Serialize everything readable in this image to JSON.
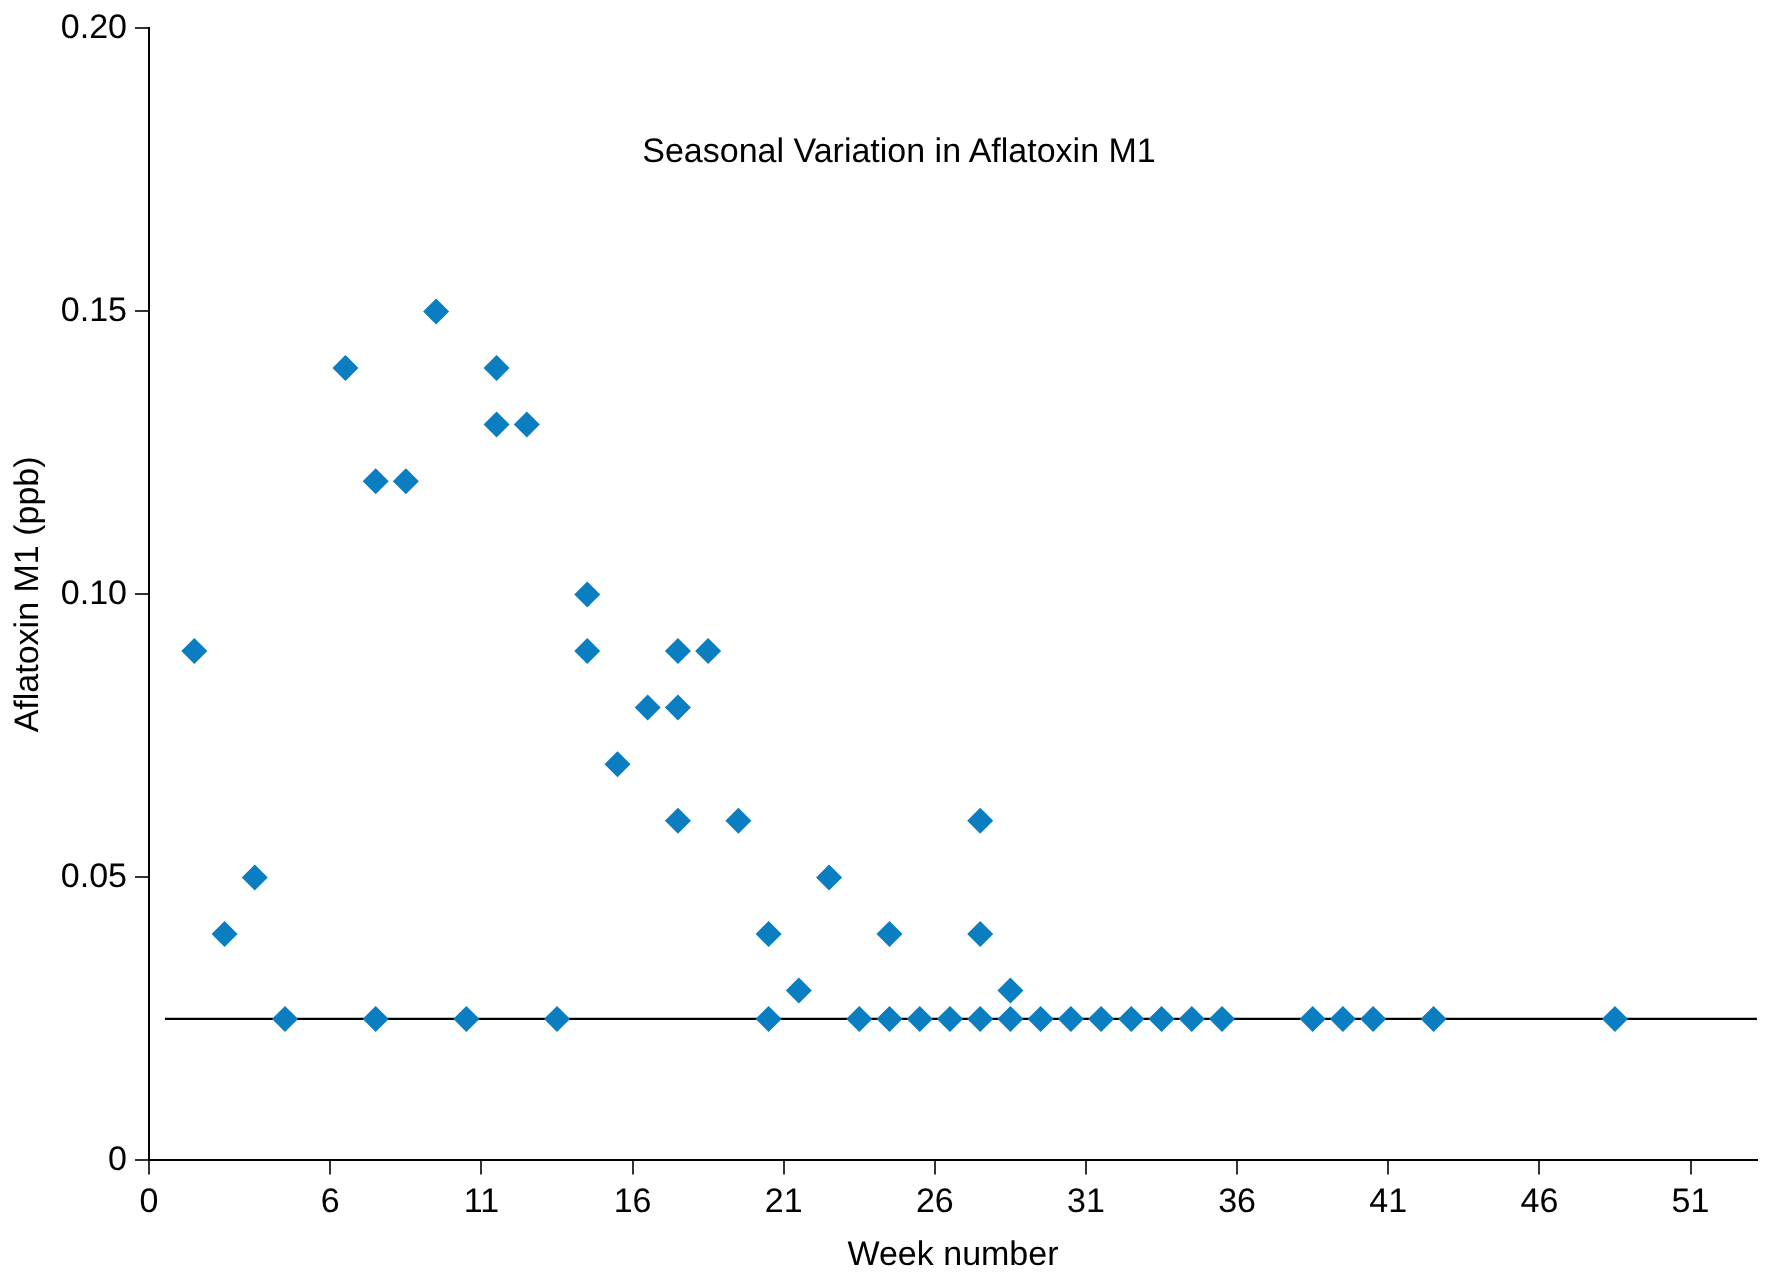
{
  "chart_data": {
    "type": "scatter",
    "title": "Seasonal Variation in Aflatoxin M1",
    "xlabel": "Week number",
    "ylabel": "Aflatoxin M1 (ppb)",
    "xlim": [
      0,
      53.2
    ],
    "xticks": [
      0,
      6,
      11,
      16,
      21,
      26,
      31,
      36,
      41,
      46,
      51
    ],
    "ylim": [
      0,
      0.2
    ],
    "yticks": [
      {
        "value": 0,
        "label": "0"
      },
      0.05,
      {
        "value": 0.1,
        "label": "0.10"
      },
      0.15,
      {
        "value": 0.2,
        "label": "0.20"
      }
    ],
    "grid": false,
    "legend": false,
    "marker": "diamond",
    "ref_lines": [
      {
        "axis": "y",
        "value": 0.025,
        "color": "#000000"
      }
    ],
    "series": [
      {
        "color": "#0b7dc1",
        "x": [
          1.5,
          2.5,
          3.5,
          6.5,
          7.5,
          8.5,
          9.5,
          11.5,
          11.5,
          12.5,
          14.5,
          14.5,
          15.5,
          16.5,
          17.5,
          17.5,
          17.5,
          18.5,
          19.5,
          20.5,
          21.5,
          22.5,
          24.5,
          27.5,
          27.5,
          28.5,
          4.5,
          7.5,
          10.5,
          13.5,
          20.5,
          23.5,
          24.5,
          25.5,
          26.5,
          27.5,
          28.5,
          29.5,
          30.5,
          31.5,
          32.5,
          33.5,
          34.5,
          35.5,
          38.5,
          39.5,
          40.5,
          42.5,
          48.5
        ],
        "values": [
          0.09,
          0.04,
          0.05,
          0.14,
          0.12,
          0.12,
          0.15,
          0.14,
          0.13,
          0.13,
          0.1,
          0.09,
          0.07,
          0.08,
          0.09,
          0.08,
          0.06,
          0.09,
          0.06,
          0.04,
          0.03,
          0.05,
          0.04,
          0.06,
          0.04,
          0.03,
          0.025,
          0.025,
          0.025,
          0.025,
          0.025,
          0.025,
          0.025,
          0.025,
          0.025,
          0.025,
          0.025,
          0.025,
          0.025,
          0.025,
          0.025,
          0.025,
          0.025,
          0.025,
          0.025,
          0.025,
          0.025,
          0.025,
          0.025
        ]
      }
    ]
  }
}
